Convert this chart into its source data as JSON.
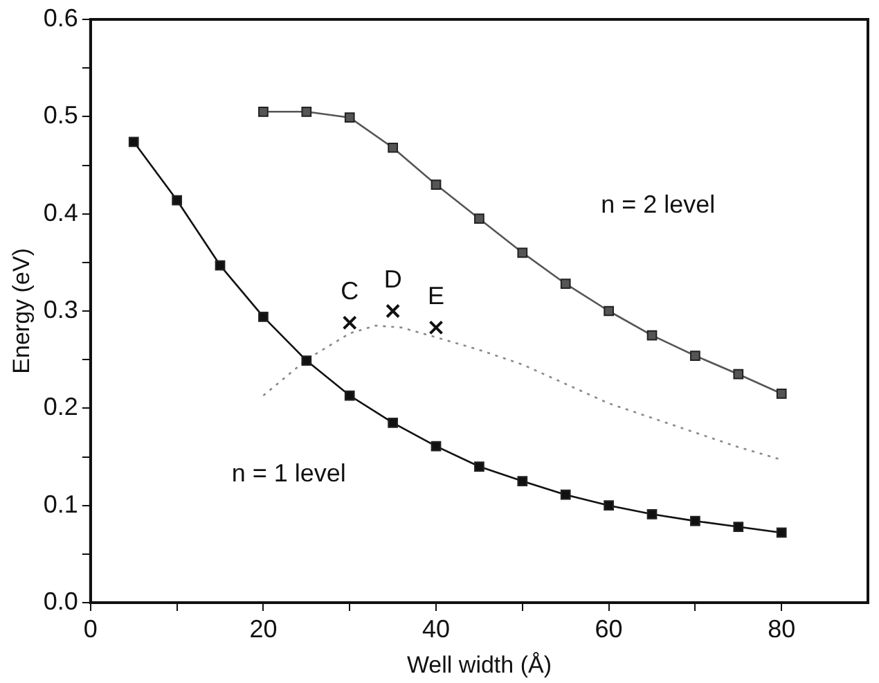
{
  "chart_data": {
    "type": "line",
    "xlabel": "Well width (Å)",
    "ylabel": "Energy (eV)",
    "xlim": [
      0,
      90
    ],
    "ylim": [
      0,
      0.6
    ],
    "xticks": [
      0,
      {
        "value": 10,
        "label": null
      },
      20,
      {
        "value": 30,
        "label": null
      },
      40,
      {
        "value": 50,
        "label": null
      },
      60,
      {
        "value": 70,
        "label": null
      },
      80
    ],
    "yticks": [
      "0.0",
      {
        "value": 0.05,
        "label": null
      },
      0.1,
      {
        "value": 0.15,
        "label": null
      },
      0.2,
      {
        "value": 0.25,
        "label": null
      },
      0.3,
      {
        "value": 0.35,
        "label": null
      },
      0.4,
      {
        "value": 0.45,
        "label": null
      },
      0.5,
      {
        "value": 0.55,
        "label": null
      },
      0.6
    ],
    "grid": false,
    "legend": false,
    "series": [
      {
        "color": "#111111",
        "marker": "square",
        "line_style": "solid",
        "x": [
          5,
          10,
          15,
          20,
          25,
          30,
          35,
          40,
          45,
          50,
          55,
          60,
          65,
          70,
          75,
          80
        ],
        "values": [
          0.474,
          0.414,
          0.347,
          0.294,
          0.249,
          0.213,
          0.185,
          0.161,
          0.14,
          0.125,
          0.111,
          0.1,
          0.091,
          0.084,
          0.078,
          0.072
        ]
      },
      {
        "color": "#555555",
        "marker": "square",
        "line_style": "solid",
        "x": [
          20,
          25,
          30,
          35,
          40,
          45,
          50,
          55,
          60,
          65,
          70,
          75,
          80
        ],
        "values": [
          0.505,
          0.505,
          0.499,
          0.468,
          0.43,
          0.395,
          0.36,
          0.328,
          0.3,
          0.275,
          0.254,
          0.235,
          0.215
        ]
      },
      {
        "color": "#888888",
        "marker": "none",
        "line_style": "dotted",
        "x": [
          20,
          25,
          30,
          33,
          36,
          40,
          45,
          50,
          55,
          60,
          65,
          70,
          75,
          80
        ],
        "values": [
          0.213,
          0.25,
          0.277,
          0.285,
          0.283,
          0.273,
          0.26,
          0.245,
          0.225,
          0.205,
          0.19,
          0.175,
          0.16,
          0.147
        ]
      },
      {
        "type": "scatter",
        "color": "#111111",
        "marker": "cross",
        "x": [
          30,
          35,
          40
        ],
        "values": [
          0.288,
          0.3,
          0.283
        ]
      }
    ],
    "annotations": [
      {
        "text": "C",
        "x": 30,
        "y": 0.288
      },
      {
        "text": "D",
        "x": 35,
        "y": 0.3
      },
      {
        "text": "E",
        "x": 40,
        "y": 0.283
      },
      "n = 2 level",
      "n = 1 level"
    ]
  }
}
